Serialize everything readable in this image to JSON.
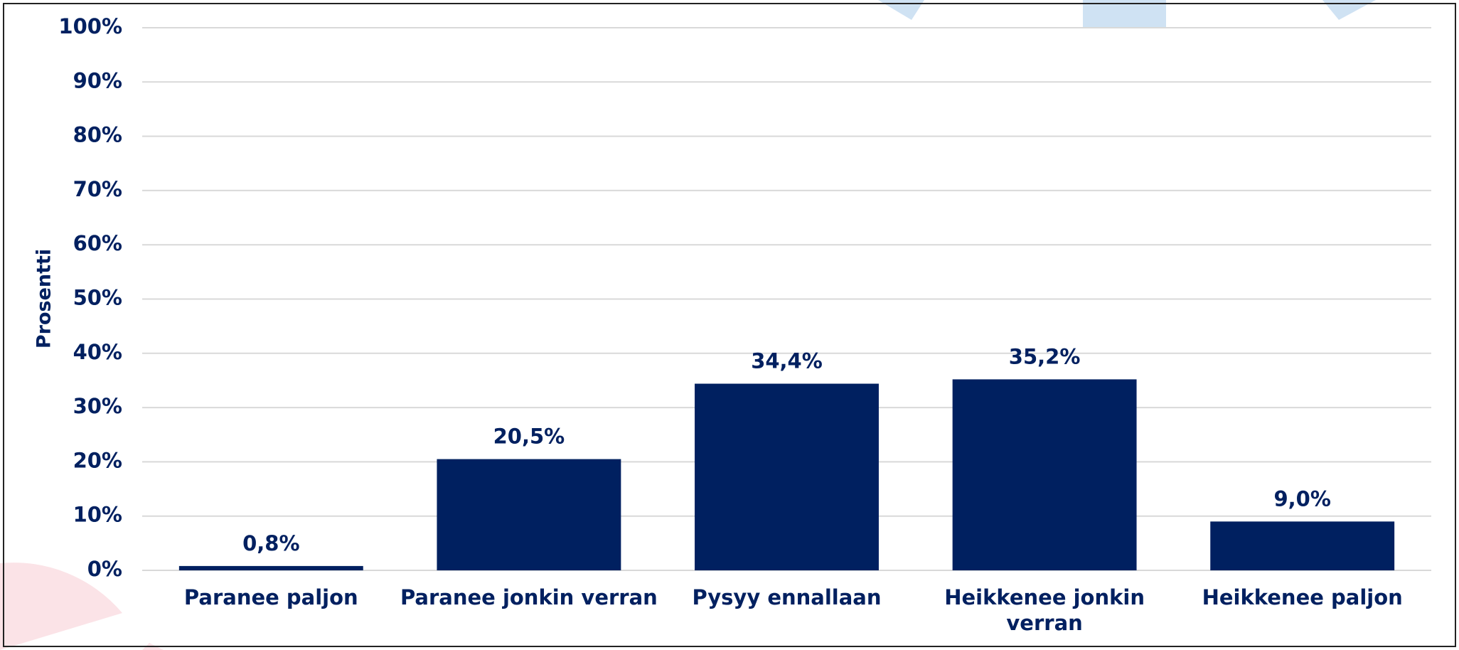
{
  "chart_data": {
    "type": "bar",
    "y_label": "Prosentti",
    "categories": [
      "Paranee paljon",
      "Paranee jonkin verran",
      "Pysyy ennallaan",
      "Heikkenee jonkin verran",
      "Heikkenee paljon"
    ],
    "values": [
      0.8,
      20.5,
      34.4,
      35.2,
      9.0
    ],
    "value_labels": [
      "0,8%",
      "20,5%",
      "34,4%",
      "35,2%",
      "9,0%"
    ],
    "color": "#002060",
    "ylim": [
      0,
      100
    ],
    "yticks": [
      {
        "value": 0,
        "label": "0%"
      },
      {
        "value": 10,
        "label": "10%"
      },
      {
        "value": 20,
        "label": "20%"
      },
      {
        "value": 30,
        "label": "30%"
      },
      {
        "value": 40,
        "label": "40%"
      },
      {
        "value": 50,
        "label": "50%"
      },
      {
        "value": 60,
        "label": "60%"
      },
      {
        "value": 70,
        "label": "70%"
      },
      {
        "value": 80,
        "label": "80%"
      },
      {
        "value": 90,
        "label": "90%"
      },
      {
        "value": 100,
        "label": "100%"
      }
    ],
    "grid": true
  }
}
